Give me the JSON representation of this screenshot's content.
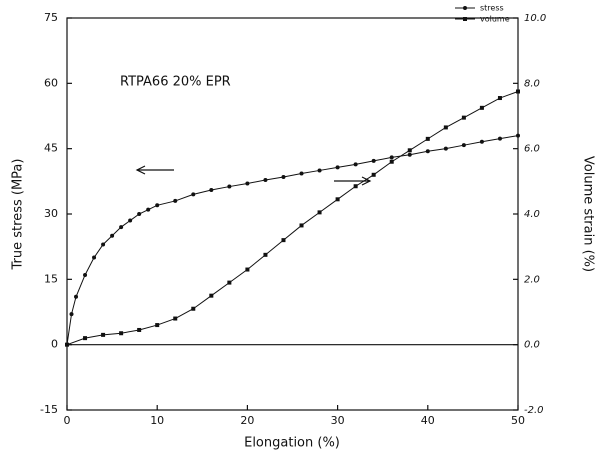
{
  "chart_data": {
    "type": "line",
    "annotation": "RTPA66   20% EPR",
    "xlabel": "Elongation (%)",
    "ylabel": "True stress (MPa)",
    "y2label": "Volume strain (%)",
    "xlim": [
      0,
      50
    ],
    "xticks": [
      0,
      10,
      20,
      30,
      40,
      50
    ],
    "ylim": [
      -15,
      75
    ],
    "yticks": [
      -15,
      0,
      15,
      30,
      45,
      60,
      75
    ],
    "y2lim": [
      -2,
      10
    ],
    "y2ticks": [
      {
        "value": -2,
        "label": "-2.0"
      },
      {
        "value": 0,
        "label": "0.0"
      },
      {
        "value": 2,
        "label": "2.0"
      },
      {
        "value": 4,
        "label": "4.0"
      },
      {
        "value": 6,
        "label": "6.0"
      },
      {
        "value": 8,
        "label": "8.0"
      },
      {
        "value": 10,
        "label": "10.0"
      }
    ],
    "legend": "top-right",
    "series": [
      {
        "name": "stress",
        "color": "#111111",
        "marker": "circle",
        "x": [
          0,
          0.5,
          1,
          2,
          3,
          4,
          5,
          6,
          7,
          8,
          9,
          10,
          12,
          14,
          16,
          18,
          20,
          22,
          24,
          26,
          28,
          30,
          32,
          34,
          36,
          38,
          40,
          42,
          44,
          46,
          48,
          50
        ],
        "values": [
          0,
          7,
          11,
          16,
          20,
          23,
          25,
          27,
          28.5,
          30,
          31,
          32,
          33,
          34.5,
          35.5,
          36.3,
          37,
          37.8,
          38.5,
          39.3,
          40,
          40.7,
          41.4,
          42.2,
          43,
          43.6,
          44.4,
          45,
          45.8,
          46.6,
          47.3,
          48
        ]
      },
      {
        "name": "volume",
        "color": "#111111",
        "marker": "square",
        "axis": "y2",
        "x": [
          0,
          2,
          4,
          6,
          8,
          10,
          12,
          14,
          16,
          18,
          20,
          22,
          24,
          26,
          28,
          30,
          32,
          34,
          36,
          38,
          40,
          42,
          44,
          46,
          48,
          50
        ],
        "values": [
          0,
          0.2,
          0.3,
          0.35,
          0.45,
          0.6,
          0.8,
          1.1,
          1.5,
          1.9,
          2.3,
          2.75,
          3.2,
          3.65,
          4.05,
          4.45,
          4.85,
          5.2,
          5.6,
          5.95,
          6.3,
          6.65,
          6.95,
          7.25,
          7.55,
          7.75
        ]
      }
    ]
  }
}
